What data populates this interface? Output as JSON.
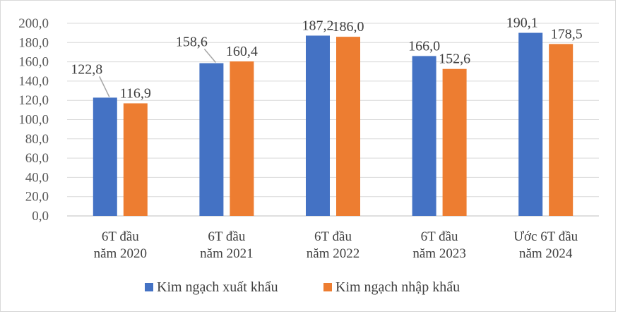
{
  "chart_data": {
    "type": "bar",
    "categories": [
      [
        "6T đầu",
        "năm 2020"
      ],
      [
        "6T đầu",
        "năm 2021"
      ],
      [
        "6T đầu",
        "năm 2022"
      ],
      [
        "6T đầu",
        "năm 2023"
      ],
      [
        "Ước 6T đầu",
        "năm 2024"
      ]
    ],
    "series": [
      {
        "name": "Kim ngạch xuất khẩu",
        "color": "#4472c4",
        "values": [
          122.8,
          158.6,
          187.2,
          166.0,
          190.1
        ],
        "labels": [
          "122,8",
          "158,6",
          "187,2",
          "166,0",
          "190,1"
        ]
      },
      {
        "name": "Kim ngạch nhập khẩu",
        "color": "#ed7d31",
        "values": [
          116.9,
          160.4,
          186.0,
          152.6,
          178.5
        ],
        "labels": [
          "116,9",
          "160,4",
          "186,0",
          "152,6",
          "178,5"
        ]
      }
    ],
    "yticks": [
      "0,0",
      "20,0",
      "40,0",
      "60,0",
      "80,0",
      "100,0",
      "120,0",
      "140,0",
      "160,0",
      "180,0",
      "200,0"
    ],
    "ylim": [
      0,
      200
    ],
    "grid": true,
    "legend": "bottom"
  }
}
